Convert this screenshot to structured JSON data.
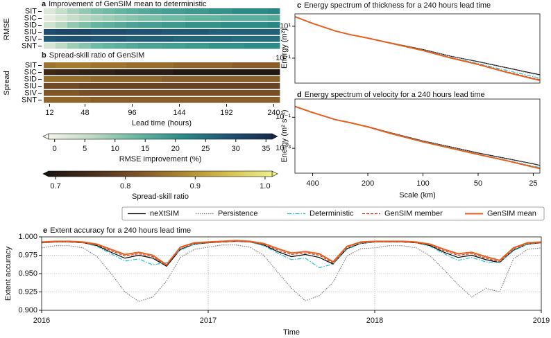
{
  "chart_data": [
    {
      "type": "heatmap",
      "label": "a",
      "title": "Improvement of GenSIM mean to deterministic",
      "ylabel": "RMSE",
      "y": [
        "SIT",
        "SIC",
        "SID",
        "SIU",
        "SIV",
        "SNT"
      ],
      "x": [
        12,
        24,
        36,
        48,
        60,
        72,
        84,
        96,
        108,
        120,
        132,
        144,
        156,
        168,
        180,
        192,
        204,
        216,
        228,
        240
      ],
      "xlim": [
        6,
        246
      ],
      "values": [
        [
          2,
          5,
          8,
          10,
          12,
          13,
          14,
          15,
          16,
          17,
          18,
          18,
          19,
          19,
          20,
          20,
          21,
          21,
          21,
          22
        ],
        [
          1,
          3,
          5,
          7,
          8,
          9,
          10,
          11,
          12,
          12,
          13,
          13,
          14,
          14,
          14,
          15,
          15,
          15,
          15,
          16
        ],
        [
          4,
          7,
          10,
          12,
          14,
          15,
          16,
          17,
          18,
          18,
          19,
          19,
          20,
          20,
          20,
          21,
          21,
          21,
          21,
          22
        ],
        [
          30,
          31,
          31,
          31,
          30,
          30,
          30,
          29,
          29,
          29,
          28,
          28,
          28,
          28,
          27,
          27,
          27,
          27,
          27,
          27
        ],
        [
          28,
          29,
          29,
          29,
          28,
          28,
          28,
          27,
          27,
          27,
          27,
          26,
          26,
          26,
          26,
          26,
          25,
          25,
          25,
          25
        ],
        [
          3,
          6,
          9,
          11,
          13,
          14,
          15,
          16,
          17,
          17,
          18,
          18,
          19,
          19,
          20,
          20,
          20,
          21,
          21,
          21
        ]
      ],
      "colormap": [
        "#f6f3ea",
        "#bcd9c2",
        "#66b6a0",
        "#2b8b87",
        "#1f5474",
        "#172a4a"
      ],
      "colorbar": {
        "label": "RMSE improvement (%)",
        "clim": [
          -1,
          36
        ],
        "ticks": [
          0,
          5,
          10,
          15,
          20,
          25,
          30,
          35
        ]
      }
    },
    {
      "type": "heatmap",
      "label": "b",
      "title": "Spread-skill ratio of GenSIM",
      "ylabel": "Spread",
      "xlabel": "Lead time (hours)",
      "y": [
        "SIT",
        "SIC",
        "SID",
        "SIU",
        "SIV",
        "SNT"
      ],
      "x": [
        12,
        24,
        36,
        48,
        60,
        72,
        84,
        96,
        108,
        120,
        132,
        144,
        156,
        168,
        180,
        192,
        204,
        216,
        228,
        240
      ],
      "xlim": [
        6,
        246
      ],
      "xticks": [
        12,
        48,
        96,
        144,
        192,
        240
      ],
      "values": [
        [
          0.86,
          0.87,
          0.87,
          0.87,
          0.86,
          0.86,
          0.86,
          0.85,
          0.85,
          0.85,
          0.85,
          0.84,
          0.84,
          0.84,
          0.84,
          0.84,
          0.83,
          0.83,
          0.83,
          0.83
        ],
        [
          0.74,
          0.73,
          0.73,
          0.72,
          0.72,
          0.72,
          0.71,
          0.71,
          0.71,
          0.71,
          0.71,
          0.7,
          0.7,
          0.7,
          0.7,
          0.7,
          0.7,
          0.7,
          0.7,
          0.7
        ],
        [
          0.85,
          0.85,
          0.85,
          0.85,
          0.84,
          0.84,
          0.84,
          0.84,
          0.84,
          0.84,
          0.83,
          0.83,
          0.83,
          0.83,
          0.83,
          0.83,
          0.83,
          0.83,
          0.83,
          0.83
        ],
        [
          0.8,
          0.8,
          0.8,
          0.79,
          0.79,
          0.79,
          0.79,
          0.79,
          0.79,
          0.79,
          0.79,
          0.79,
          0.79,
          0.79,
          0.79,
          0.79,
          0.79,
          0.79,
          0.79,
          0.79
        ],
        [
          0.82,
          0.82,
          0.82,
          0.81,
          0.81,
          0.81,
          0.81,
          0.81,
          0.81,
          0.81,
          0.81,
          0.81,
          0.81,
          0.81,
          0.81,
          0.81,
          0.81,
          0.81,
          0.81,
          0.81
        ],
        [
          0.84,
          0.84,
          0.84,
          0.84,
          0.83,
          0.83,
          0.83,
          0.83,
          0.83,
          0.83,
          0.83,
          0.83,
          0.83,
          0.83,
          0.83,
          0.83,
          0.83,
          0.83,
          0.83,
          0.83
        ]
      ],
      "colormap": [
        "#1a1410",
        "#4a2e1c",
        "#7f5328",
        "#ae862e",
        "#d4bf4a",
        "#eef08c"
      ],
      "colorbar": {
        "label": "Spread-skill ratio",
        "clim": [
          0.69,
          1.01
        ],
        "ticks": [
          0.7,
          0.8,
          0.9,
          {
            "value": 1,
            "label": "1.0"
          }
        ]
      }
    },
    {
      "type": "line",
      "label": "c",
      "title": "Energy spectrum of thickness for a 240 hours lead time",
      "ylabel": "Energy (m²)",
      "xscale": "log",
      "yscale": "log",
      "xlim": [
        500,
        23
      ],
      "ylim": [
        0.0027,
        60
      ],
      "yticks": [
        {
          "value": 10,
          "label": "10¹"
        },
        {
          "value": 0.1,
          "label": "10⁻¹"
        }
      ],
      "x": [
        500,
        400,
        300,
        250,
        200,
        150,
        100,
        70,
        50,
        35,
        25,
        23
      ],
      "series": [
        {
          "name": "neXtSIM",
          "color": "#000000",
          "style": "solid",
          "linewidth": 1.2,
          "values": [
            40,
            15,
            5,
            3,
            1.8,
            0.9,
            0.35,
            0.13,
            0.06,
            0.025,
            0.011,
            0.009
          ]
        },
        {
          "name": "Persistence",
          "color": "#808080",
          "style": "dotted",
          "linewidth": 1.2,
          "values": [
            40,
            15,
            5,
            3,
            1.8,
            0.9,
            0.35,
            0.13,
            0.058,
            0.024,
            0.01,
            0.0085
          ]
        },
        {
          "name": "Deterministic",
          "color": "#20c0d0",
          "style": "dashdot",
          "linewidth": 1.2,
          "values": [
            40,
            15,
            5,
            3,
            1.8,
            0.88,
            0.32,
            0.11,
            0.045,
            0.017,
            0.007,
            0.0055
          ]
        },
        {
          "name": "GenSIM member",
          "color": "#c8361c",
          "style": "dashed",
          "linewidth": 1.2,
          "values": [
            40,
            15,
            5,
            3,
            1.8,
            0.87,
            0.31,
            0.105,
            0.042,
            0.014,
            0.0055,
            0.0045
          ]
        },
        {
          "name": "GenSIM mean",
          "color": "#e8601c",
          "style": "solid",
          "linewidth": 2,
          "values": [
            40,
            15,
            5,
            3,
            1.8,
            0.86,
            0.3,
            0.1,
            0.04,
            0.013,
            0.005,
            0.004
          ]
        }
      ]
    },
    {
      "type": "line",
      "label": "d",
      "title": "Energy spectrum of velocity for a 240 hours lead time",
      "ylabel": "Energy (m² s⁻²)",
      "xlabel": "Scale (km)",
      "xscale": "log",
      "yscale": "log",
      "xlim": [
        500,
        23
      ],
      "ylim": [
        2.5e-05,
        1.5
      ],
      "xticks": [
        400,
        200,
        100,
        50,
        25
      ],
      "yticks": [
        {
          "value": 0.1,
          "label": "10⁻¹"
        },
        {
          "value": 0.001,
          "label": "10⁻³"
        }
      ],
      "x": [
        500,
        400,
        300,
        250,
        200,
        150,
        100,
        70,
        50,
        35,
        25,
        23
      ],
      "series": [
        {
          "name": "neXtSIM",
          "color": "#000000",
          "style": "solid",
          "linewidth": 1.2,
          "values": [
            0.5,
            0.2,
            0.07,
            0.045,
            0.025,
            0.01,
            0.003,
            0.0012,
            0.0005,
            0.00022,
            0.0001,
            8e-05
          ]
        },
        {
          "name": "Persistence",
          "color": "#808080",
          "style": "dotted",
          "linewidth": 1.2,
          "values": [
            0.5,
            0.2,
            0.07,
            0.045,
            0.025,
            0.01,
            0.003,
            0.0012,
            0.00048,
            0.00021,
            9.5e-05,
            7.8e-05
          ]
        },
        {
          "name": "Deterministic",
          "color": "#20c0d0",
          "style": "dashdot",
          "linewidth": 1.2,
          "values": [
            0.5,
            0.2,
            0.07,
            0.045,
            0.025,
            0.0095,
            0.0028,
            0.0011,
            0.00042,
            0.00017,
            7e-05,
            5.8e-05
          ]
        },
        {
          "name": "GenSIM member",
          "color": "#c8361c",
          "style": "dashed",
          "linewidth": 1.2,
          "values": [
            0.52,
            0.21,
            0.072,
            0.046,
            0.025,
            0.0095,
            0.0027,
            0.001,
            0.0004,
            0.00016,
            6.5e-05,
            5.2e-05
          ]
        },
        {
          "name": "GenSIM mean",
          "color": "#e8601c",
          "style": "solid",
          "linewidth": 2,
          "values": [
            0.5,
            0.2,
            0.07,
            0.045,
            0.024,
            0.009,
            0.0026,
            0.001,
            0.0004,
            0.00016,
            6.2e-05,
            5e-05
          ]
        }
      ]
    },
    {
      "type": "line",
      "label": "e",
      "title": "Extent accuracy for a 240 hours lead time",
      "ylabel": "Extent accuracy",
      "xlabel": "Time",
      "grid": true,
      "legend": "top",
      "xlim": [
        2016,
        2019
      ],
      "ylim": [
        0.9,
        1.0
      ],
      "xticks": [
        2016,
        2017,
        2018,
        2019
      ],
      "yticks": [
        {
          "value": 0.9,
          "label": "0.900"
        },
        0.925,
        {
          "value": 0.95,
          "label": "0.950"
        },
        0.975,
        {
          "value": 1.0,
          "label": "1.000"
        }
      ],
      "x": [
        2016,
        2016.083,
        2016.167,
        2016.25,
        2016.333,
        2016.417,
        2016.5,
        2016.583,
        2016.667,
        2016.75,
        2016.833,
        2016.917,
        2017,
        2017.083,
        2017.167,
        2017.25,
        2017.333,
        2017.417,
        2017.5,
        2017.583,
        2017.667,
        2017.75,
        2017.833,
        2017.917,
        2018,
        2018.083,
        2018.167,
        2018.25,
        2018.333,
        2018.417,
        2018.5,
        2018.583,
        2018.667,
        2018.75,
        2018.833,
        2018.917,
        2019
      ],
      "series": [
        {
          "name": "neXtSIM",
          "color": "#000000",
          "style": "solid",
          "linewidth": 1.2,
          "values": [
            0.992,
            0.993,
            0.993,
            0.992,
            0.988,
            0.979,
            0.971,
            0.975,
            0.971,
            0.96,
            0.983,
            0.99,
            0.992,
            0.993,
            0.994,
            0.993,
            0.989,
            0.98,
            0.973,
            0.976,
            0.972,
            0.963,
            0.984,
            0.991,
            0.993,
            0.993,
            0.993,
            0.992,
            0.988,
            0.979,
            0.972,
            0.975,
            0.969,
            0.965,
            0.982,
            0.99,
            0.992
          ]
        },
        {
          "name": "Persistence",
          "color": "#808080",
          "style": "dotted",
          "linewidth": 1.2,
          "values": [
            0.985,
            0.988,
            0.988,
            0.985,
            0.973,
            0.95,
            0.925,
            0.912,
            0.918,
            0.94,
            0.972,
            0.983,
            0.986,
            0.989,
            0.989,
            0.986,
            0.975,
            0.952,
            0.93,
            0.913,
            0.92,
            0.938,
            0.974,
            0.984,
            0.985,
            0.988,
            0.988,
            0.985,
            0.974,
            0.955,
            0.935,
            0.918,
            0.93,
            0.925,
            0.97,
            0.983,
            0.985
          ]
        },
        {
          "name": "Deterministic",
          "color": "#20c0d0",
          "style": "dashdot",
          "linewidth": 1.2,
          "values": [
            0.992,
            0.993,
            0.993,
            0.992,
            0.987,
            0.977,
            0.967,
            0.97,
            0.962,
            0.965,
            0.982,
            0.99,
            0.992,
            0.993,
            0.994,
            0.993,
            0.988,
            0.978,
            0.969,
            0.971,
            0.958,
            0.963,
            0.983,
            0.991,
            0.993,
            0.993,
            0.993,
            0.992,
            0.987,
            0.977,
            0.968,
            0.972,
            0.966,
            0.965,
            0.981,
            0.99,
            0.992
          ]
        },
        {
          "name": "GenSIM member",
          "color": "#c8361c",
          "style": "dashed",
          "linewidth": 1.2,
          "values": [
            0.992,
            0.993,
            0.993,
            0.992,
            0.989,
            0.981,
            0.974,
            0.977,
            0.973,
            0.961,
            0.985,
            0.991,
            0.992,
            0.993,
            0.994,
            0.993,
            0.99,
            0.982,
            0.976,
            0.978,
            0.975,
            0.964,
            0.986,
            0.992,
            0.993,
            0.993,
            0.993,
            0.992,
            0.989,
            0.981,
            0.975,
            0.977,
            0.971,
            0.966,
            0.984,
            0.991,
            0.992
          ]
        },
        {
          "name": "GenSIM mean",
          "color": "#e8601c",
          "style": "solid",
          "linewidth": 2,
          "values": [
            0.993,
            0.994,
            0.994,
            0.993,
            0.99,
            0.983,
            0.976,
            0.979,
            0.975,
            0.962,
            0.986,
            0.992,
            0.993,
            0.994,
            0.995,
            0.994,
            0.991,
            0.984,
            0.978,
            0.98,
            0.977,
            0.966,
            0.987,
            0.993,
            0.994,
            0.994,
            0.994,
            0.993,
            0.99,
            0.983,
            0.977,
            0.979,
            0.973,
            0.968,
            0.985,
            0.992,
            0.993
          ]
        }
      ]
    }
  ]
}
